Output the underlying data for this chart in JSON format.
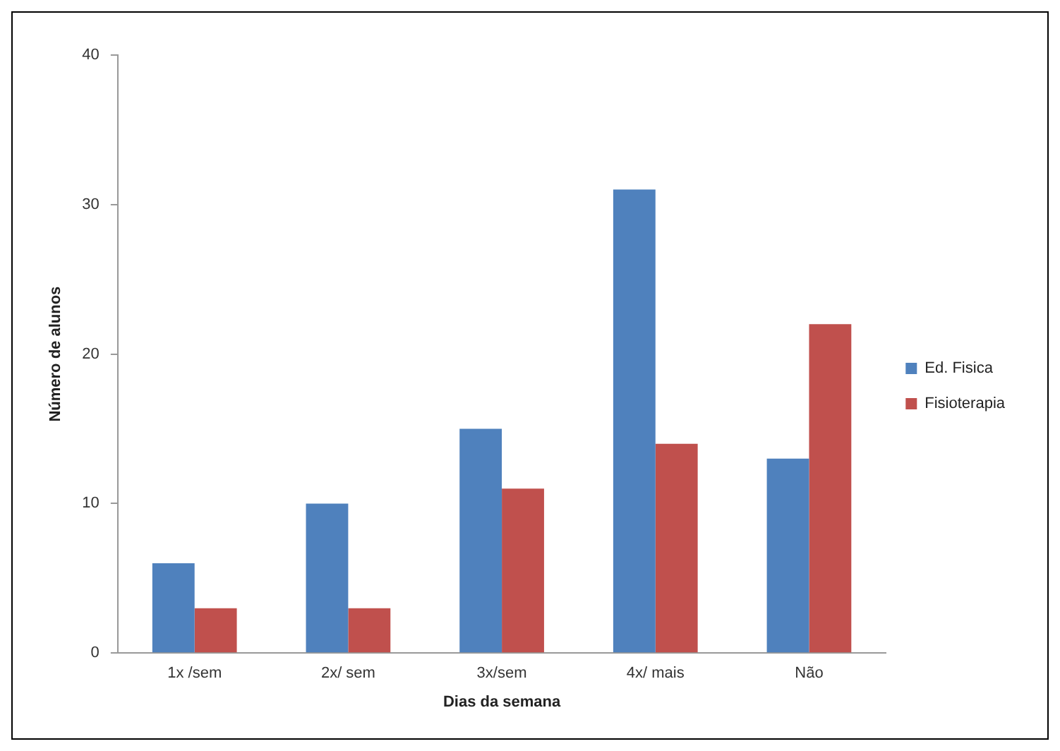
{
  "chart_data": {
    "type": "bar",
    "xlabel": "Dias da semana",
    "ylabel": "Número de alunos",
    "categories": [
      "1x /sem",
      "2x/ sem",
      "3x/sem",
      "4x/ mais",
      "Não"
    ],
    "series": [
      {
        "name": "Ed. Fisica",
        "color": "#4f81bd",
        "values": [
          6,
          10,
          15,
          31,
          13
        ]
      },
      {
        "name": "Fisioterapia",
        "color": "#c0504d",
        "values": [
          3,
          3,
          11,
          14,
          22
        ]
      }
    ],
    "ylim": [
      0,
      40
    ],
    "yticks": [
      0,
      10,
      20,
      30,
      40
    ],
    "grid": false,
    "legend": "right"
  }
}
